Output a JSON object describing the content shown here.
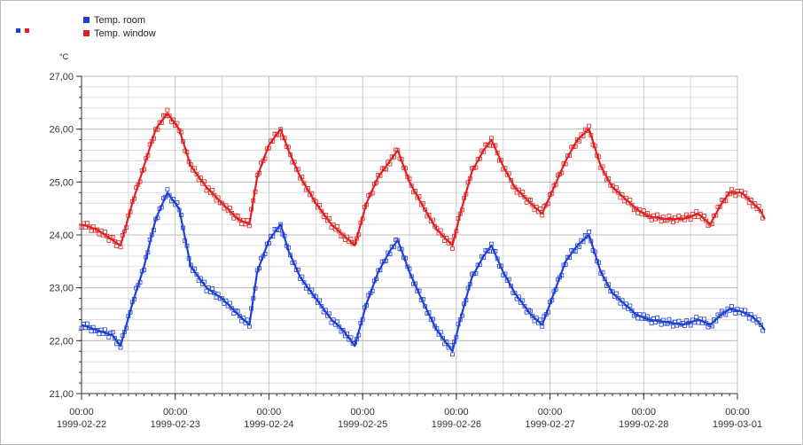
{
  "legend_toggle": {
    "colors": [
      "#1f3fd6",
      "#e02020"
    ]
  },
  "chart_data": {
    "type": "line",
    "unit_label": "°C",
    "ylim": [
      21,
      27
    ],
    "y_ticks": [
      "21,00",
      "22,00",
      "23,00",
      "24,00",
      "25,00",
      "26,00",
      "27,00"
    ],
    "y_tick_values": [
      21,
      22,
      23,
      24,
      25,
      26,
      27
    ],
    "xlim": [
      "1999-02-22 00:00",
      "1999-03-01 00:00"
    ],
    "x_ticks": [
      {
        "time": "00:00",
        "date": "1999-02-22",
        "day": 0
      },
      {
        "time": "00:00",
        "date": "1999-02-23",
        "day": 1
      },
      {
        "time": "00:00",
        "date": "1999-02-24",
        "day": 2
      },
      {
        "time": "00:00",
        "date": "1999-02-25",
        "day": 3
      },
      {
        "time": "00:00",
        "date": "1999-02-26",
        "day": 4
      },
      {
        "time": "00:00",
        "date": "1999-02-27",
        "day": 5
      },
      {
        "time": "00:00",
        "date": "1999-02-28",
        "day": 6
      },
      {
        "time": "00:00",
        "date": "1999-03-01",
        "day": 7
      }
    ],
    "grid": true,
    "legend_position": "top-left",
    "series": [
      {
        "name": "Temp. room",
        "color": "#1f3fd6",
        "points": [
          [
            "1999-02-22 00:00",
            22.3
          ],
          [
            "1999-02-22 04:00",
            22.2
          ],
          [
            "1999-02-22 08:00",
            22.1
          ],
          [
            "1999-02-22 10:00",
            21.9
          ],
          [
            "1999-02-22 13:00",
            22.7
          ],
          [
            "1999-02-22 16:00",
            23.4
          ],
          [
            "1999-02-22 19:00",
            24.3
          ],
          [
            "1999-02-22 22:00",
            24.8
          ],
          [
            "1999-02-23 01:00",
            24.5
          ],
          [
            "1999-02-23 04:00",
            23.4
          ],
          [
            "1999-02-23 08:00",
            23.0
          ],
          [
            "1999-02-23 12:00",
            22.8
          ],
          [
            "1999-02-23 16:00",
            22.5
          ],
          [
            "1999-02-23 19:00",
            22.3
          ],
          [
            "1999-02-23 21:00",
            23.3
          ],
          [
            "1999-02-24 00:00",
            23.9
          ],
          [
            "1999-02-24 03:00",
            24.2
          ],
          [
            "1999-02-24 05:00",
            23.7
          ],
          [
            "1999-02-24 08:00",
            23.2
          ],
          [
            "1999-02-24 12:00",
            22.8
          ],
          [
            "1999-02-24 16:00",
            22.4
          ],
          [
            "1999-02-24 19:00",
            22.2
          ],
          [
            "1999-02-24 22:00",
            21.9
          ],
          [
            "1999-02-25 01:00",
            22.7
          ],
          [
            "1999-02-25 04:00",
            23.3
          ],
          [
            "1999-02-25 07:00",
            23.7
          ],
          [
            "1999-02-25 09:00",
            23.9
          ],
          [
            "1999-02-25 12:00",
            23.3
          ],
          [
            "1999-02-25 15:00",
            22.8
          ],
          [
            "1999-02-25 19:00",
            22.2
          ],
          [
            "1999-02-25 23:00",
            21.8
          ],
          [
            "1999-02-26 01:00",
            22.4
          ],
          [
            "1999-02-26 04:00",
            23.2
          ],
          [
            "1999-02-26 07:00",
            23.6
          ],
          [
            "1999-02-26 09:00",
            23.8
          ],
          [
            "1999-02-26 12:00",
            23.3
          ],
          [
            "1999-02-26 15:00",
            22.9
          ],
          [
            "1999-02-26 19:00",
            22.5
          ],
          [
            "1999-02-26 22:00",
            22.3
          ],
          [
            "1999-02-27 01:00",
            22.9
          ],
          [
            "1999-02-27 04:00",
            23.5
          ],
          [
            "1999-02-27 07:00",
            23.8
          ],
          [
            "1999-02-27 10:00",
            24.0
          ],
          [
            "1999-02-27 13:00",
            23.3
          ],
          [
            "1999-02-27 16:00",
            22.9
          ],
          [
            "1999-02-27 19:00",
            22.7
          ],
          [
            "1999-02-27 22:00",
            22.5
          ],
          [
            "1999-02-28 01:00",
            22.4
          ],
          [
            "1999-02-28 06:00",
            22.35
          ],
          [
            "1999-02-28 10:00",
            22.3
          ],
          [
            "1999-02-28 14:00",
            22.4
          ],
          [
            "1999-02-28 17:00",
            22.3
          ],
          [
            "1999-02-28 20:00",
            22.5
          ],
          [
            "1999-02-28 22:00",
            22.6
          ],
          [
            "1999-03-01 01:00",
            22.55
          ],
          [
            "1999-03-01 04:00",
            22.45
          ],
          [
            "1999-03-01 06:00",
            22.3
          ],
          [
            "1999-03-01 07:00",
            22.2
          ]
        ]
      },
      {
        "name": "Temp. window",
        "color": "#e02020",
        "points": [
          [
            "1999-02-22 00:00",
            24.2
          ],
          [
            "1999-02-22 04:00",
            24.1
          ],
          [
            "1999-02-22 08:00",
            23.9
          ],
          [
            "1999-02-22 10:00",
            23.8
          ],
          [
            "1999-02-22 13:00",
            24.6
          ],
          [
            "1999-02-22 16:00",
            25.3
          ],
          [
            "1999-02-22 19:00",
            26.0
          ],
          [
            "1999-02-22 22:00",
            26.3
          ],
          [
            "1999-02-23 01:00",
            26.0
          ],
          [
            "1999-02-23 04:00",
            25.3
          ],
          [
            "1999-02-23 08:00",
            24.9
          ],
          [
            "1999-02-23 12:00",
            24.6
          ],
          [
            "1999-02-23 16:00",
            24.3
          ],
          [
            "1999-02-23 19:00",
            24.2
          ],
          [
            "1999-02-23 21:00",
            25.1
          ],
          [
            "1999-02-24 00:00",
            25.7
          ],
          [
            "1999-02-24 03:00",
            26.0
          ],
          [
            "1999-02-24 05:00",
            25.6
          ],
          [
            "1999-02-24 08:00",
            25.1
          ],
          [
            "1999-02-24 12:00",
            24.6
          ],
          [
            "1999-02-24 16:00",
            24.2
          ],
          [
            "1999-02-24 19:00",
            24.0
          ],
          [
            "1999-02-24 22:00",
            23.8
          ],
          [
            "1999-02-25 01:00",
            24.6
          ],
          [
            "1999-02-25 04:00",
            25.1
          ],
          [
            "1999-02-25 07:00",
            25.4
          ],
          [
            "1999-02-25 09:00",
            25.6
          ],
          [
            "1999-02-25 12:00",
            25.0
          ],
          [
            "1999-02-25 15:00",
            24.6
          ],
          [
            "1999-02-25 19:00",
            24.1
          ],
          [
            "1999-02-25 23:00",
            23.8
          ],
          [
            "1999-02-26 01:00",
            24.4
          ],
          [
            "1999-02-26 04:00",
            25.2
          ],
          [
            "1999-02-26 07:00",
            25.6
          ],
          [
            "1999-02-26 09:00",
            25.8
          ],
          [
            "1999-02-26 12:00",
            25.3
          ],
          [
            "1999-02-26 15:00",
            24.9
          ],
          [
            "1999-02-26 19:00",
            24.6
          ],
          [
            "1999-02-26 22:00",
            24.4
          ],
          [
            "1999-02-27 01:00",
            24.9
          ],
          [
            "1999-02-27 04:00",
            25.4
          ],
          [
            "1999-02-27 07:00",
            25.8
          ],
          [
            "1999-02-27 10:00",
            26.0
          ],
          [
            "1999-02-27 13:00",
            25.3
          ],
          [
            "1999-02-27 16:00",
            24.9
          ],
          [
            "1999-02-27 19:00",
            24.7
          ],
          [
            "1999-02-27 22:00",
            24.5
          ],
          [
            "1999-02-28 01:00",
            24.35
          ],
          [
            "1999-02-28 06:00",
            24.3
          ],
          [
            "1999-02-28 10:00",
            24.3
          ],
          [
            "1999-02-28 14:00",
            24.4
          ],
          [
            "1999-02-28 17:00",
            24.2
          ],
          [
            "1999-02-28 20:00",
            24.6
          ],
          [
            "1999-02-28 22:00",
            24.8
          ],
          [
            "1999-03-01 01:00",
            24.8
          ],
          [
            "1999-03-01 04:00",
            24.6
          ],
          [
            "1999-03-01 06:00",
            24.45
          ],
          [
            "1999-03-01 07:00",
            24.3
          ]
        ]
      }
    ]
  }
}
